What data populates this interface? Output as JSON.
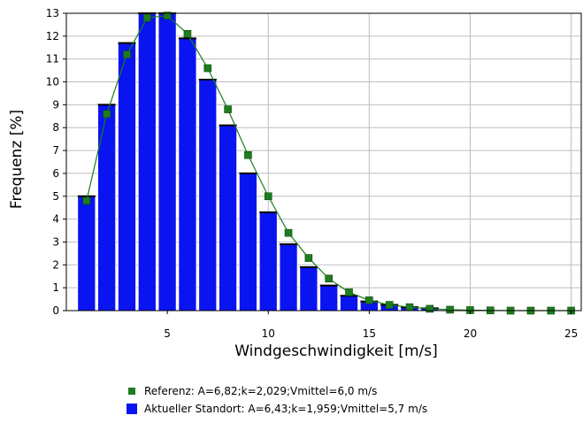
{
  "chart_data": {
    "type": "bar",
    "xlabel": "Windgeschwindigkeit [m/s]",
    "ylabel": "Frequenz [%]",
    "xlim": [
      0,
      25.5
    ],
    "ylim": [
      0,
      13
    ],
    "x_ticks": [
      5,
      10,
      15,
      20,
      25
    ],
    "y_ticks": [
      0,
      1,
      2,
      3,
      4,
      5,
      6,
      7,
      8,
      9,
      10,
      11,
      12,
      13
    ],
    "grid": true,
    "legend_position": "bottom",
    "series": [
      {
        "name": "Aktueller Standort: A=6,43;k=1,959;Vmittel=5,7 m/s",
        "kind": "bar",
        "color": "#0a14f0",
        "x": [
          1,
          2,
          3,
          4,
          5,
          6,
          7,
          8,
          9,
          10,
          11,
          12,
          13,
          14,
          15,
          16,
          17,
          18
        ],
        "values": [
          5.0,
          9.0,
          11.7,
          13.0,
          13.0,
          11.9,
          10.1,
          8.1,
          6.0,
          4.3,
          2.9,
          1.9,
          1.1,
          0.65,
          0.4,
          0.25,
          0.15,
          0.1
        ]
      },
      {
        "name": "Referenz: A=6,82;k=2,029;Vmittel=6,0 m/s",
        "kind": "line-markers",
        "color": "#1e7d1e",
        "x": [
          1,
          2,
          3,
          4,
          5,
          6,
          7,
          8,
          9,
          10,
          11,
          12,
          13,
          14,
          15,
          16,
          17,
          18,
          19,
          20,
          21,
          22,
          23,
          24,
          25
        ],
        "values": [
          4.8,
          8.6,
          11.2,
          12.8,
          12.9,
          12.1,
          10.6,
          8.8,
          6.8,
          5.0,
          3.4,
          2.3,
          1.4,
          0.8,
          0.45,
          0.25,
          0.15,
          0.08,
          0.04,
          0.02,
          0.01,
          0.0,
          0.0,
          0.0,
          0.0
        ]
      }
    ]
  }
}
